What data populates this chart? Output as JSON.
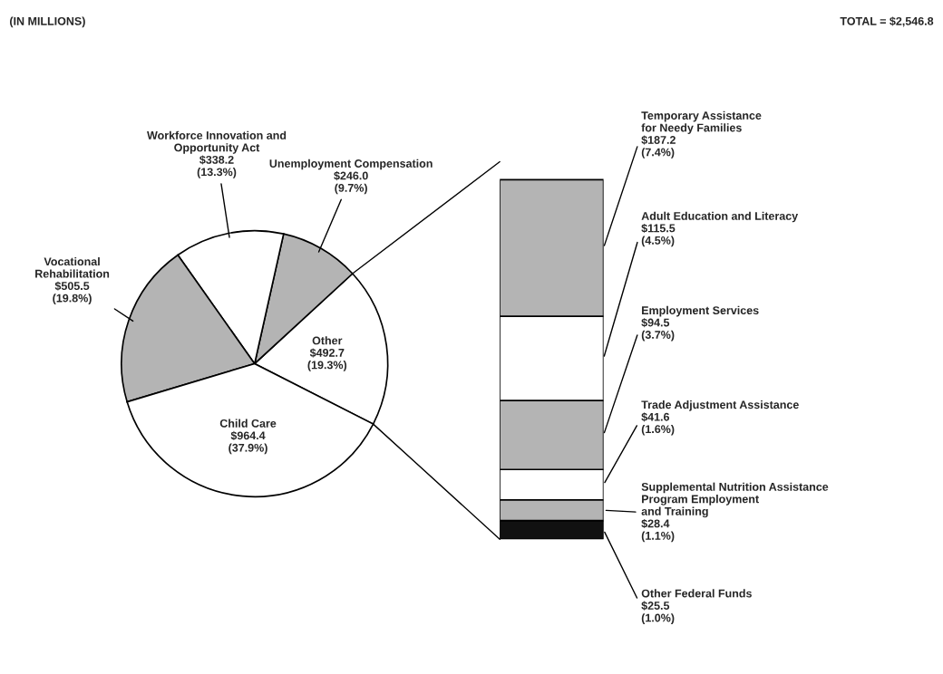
{
  "chart_data": [
    {
      "type": "pie",
      "categories": [
        "Other",
        "Unemployment Compensation",
        "Workforce Innovation and\nOpportunity Act",
        "Vocational\nRehabilitation",
        "Child Care"
      ],
      "values": [
        492.7,
        246.0,
        338.2,
        505.5,
        964.4
      ],
      "value_labels": [
        "$492.7\n(19.3%)",
        "$246.0\n(9.7%)",
        "$338.2\n(13.3%)",
        "$505.5\n(19.8%)",
        "$964.4\n(37.9%)"
      ],
      "colors": [
        "#ffffff",
        "#b4b4b4",
        "#ffffff",
        "#b4b4b4",
        "#ffffff"
      ],
      "annotations": [
        "(IN MILLIONS)",
        "TOTAL = $2,546.8"
      ]
    },
    {
      "type": "bar",
      "stacked": true,
      "categories": [
        null
      ],
      "series": [
        {
          "name": "Other Federal Funds",
          "color": "#111111",
          "values": [
            25.5
          ],
          "value_labels": [
            "$25.5\n(1.0%)"
          ]
        },
        {
          "name": "Supplemental Nutrition Assistance\nProgram Employment\nand Training",
          "color": "#b4b4b4",
          "values": [
            28.4
          ],
          "value_labels": [
            "$28.4\n(1.1%)"
          ]
        },
        {
          "name": "Trade Adjustment Assistance",
          "color": "#ffffff",
          "values": [
            41.6
          ],
          "value_labels": [
            "$41.6\n(1.6%)"
          ]
        },
        {
          "name": "Employment Services",
          "color": "#b4b4b4",
          "values": [
            94.5
          ],
          "value_labels": [
            "$94.5\n(3.7%)"
          ]
        },
        {
          "name": "Adult Education and Literacy",
          "color": "#ffffff",
          "values": [
            115.5
          ],
          "value_labels": [
            "$115.5\n(4.5%)"
          ]
        },
        {
          "name": "Temporary Assistance\nfor Needy Families",
          "color": "#b4b4b4",
          "values": [
            187.2
          ],
          "value_labels": [
            "$187.2\n(7.4%)"
          ]
        }
      ]
    }
  ]
}
